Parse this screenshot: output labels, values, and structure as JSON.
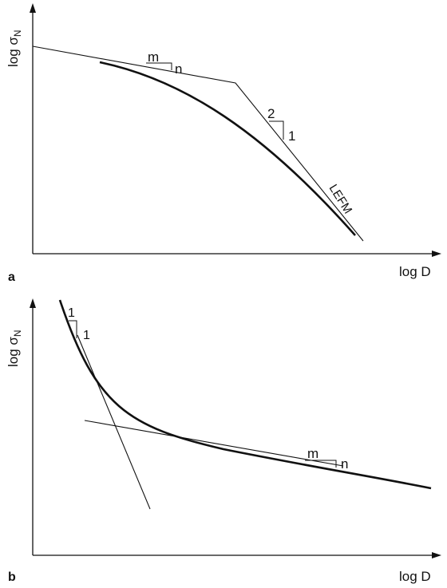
{
  "panels": [
    {
      "id": "a",
      "panel_label": "a",
      "y_axis_label": "log σ",
      "y_axis_subscript": "N",
      "x_axis_label": "log D",
      "slope_triangle_1": {
        "run_label": "m",
        "rise_label": "n"
      },
      "slope_triangle_2": {
        "run_label": "1",
        "rise_label": "2"
      },
      "curve_label": "LEFM"
    },
    {
      "id": "b",
      "panel_label": "b",
      "y_axis_label": "log σ",
      "y_axis_subscript": "N",
      "x_axis_label": "log D",
      "slope_triangle_1": {
        "run_label": "1",
        "rise_label": "1"
      },
      "slope_triangle_2": {
        "run_label": "m",
        "rise_label": "n"
      }
    }
  ],
  "colors": {
    "ink": "#111111",
    "background": "#ffffff"
  }
}
